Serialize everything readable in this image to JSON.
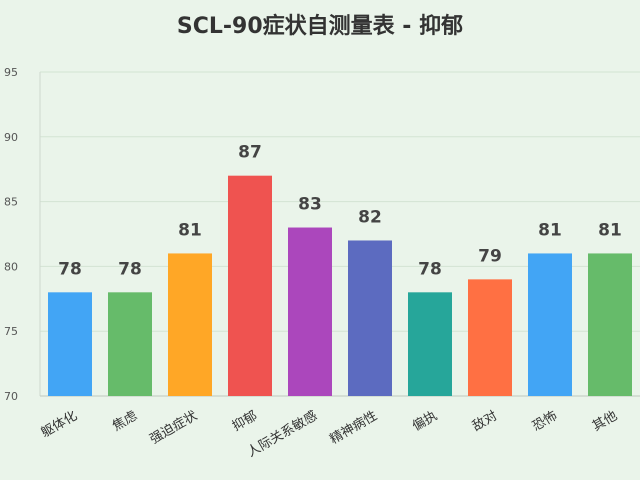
{
  "chart_data": {
    "type": "bar",
    "title": "SCL-90症状自测量表 - 抑郁",
    "categories": [
      "躯体化",
      "焦虑",
      "强迫症状",
      "抑郁",
      "人际关系敏感",
      "精神病性",
      "偏执",
      "敌对",
      "恐怖",
      "其他"
    ],
    "values": [
      78,
      78,
      81,
      87,
      83,
      82,
      78,
      79,
      81,
      81
    ],
    "colors": [
      "#42a5f5",
      "#66bb6a",
      "#ffa726",
      "#ef5350",
      "#ab47bc",
      "#5c6bc0",
      "#26a69a",
      "#ff7043",
      "#42a5f5",
      "#66bb6a"
    ],
    "ylim": [
      70,
      95
    ],
    "yticks": [
      70,
      75,
      80,
      85,
      90,
      95
    ],
    "grid": true,
    "xlabel": "",
    "ylabel": ""
  }
}
